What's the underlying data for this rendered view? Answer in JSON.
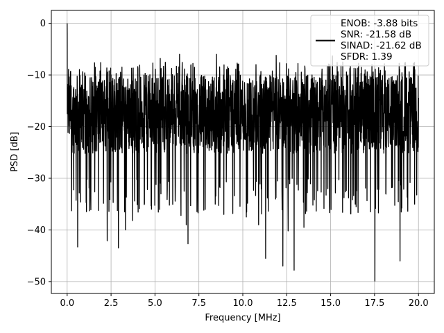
{
  "chart_data": {
    "type": "line",
    "title": "",
    "xlabel": "Frequency [MHz]",
    "ylabel": "PSD [dB]",
    "xlim": [
      -0.9,
      20.9
    ],
    "ylim": [
      -52.3,
      2.5
    ],
    "xticks": [
      0,
      2.5,
      5,
      7.5,
      10,
      12.5,
      15,
      17.5,
      20
    ],
    "xtick_labels": [
      "0.0",
      "2.5",
      "5.0",
      "7.5",
      "10.0",
      "12.5",
      "15.0",
      "17.5",
      "20.0"
    ],
    "yticks": [
      0,
      -10,
      -20,
      -30,
      -40,
      -50
    ],
    "ytick_labels": [
      "0",
      "−10",
      "−20",
      "−30",
      "−40",
      "−50"
    ],
    "grid": true,
    "legend_position": "top-right",
    "line_color": "#000000",
    "series": [
      {
        "legend_lines": [
          "ENOB: -3.88 bits",
          "SNR: -21.58 dB",
          "SINAD: -21.62 dB",
          "SFDR: 1.39"
        ],
        "x_range": [
          0,
          20
        ],
        "start_value": 0,
        "typical_range": [
          -28,
          -10
        ],
        "notable_dips": [
          {
            "x": 0.6,
            "y": -43.3
          },
          {
            "x": 0.25,
            "y": -36.3
          },
          {
            "x": 1.35,
            "y": -36.1
          },
          {
            "x": 2.28,
            "y": -42.1
          },
          {
            "x": 2.92,
            "y": -43.5
          },
          {
            "x": 3.32,
            "y": -40.0
          },
          {
            "x": 3.72,
            "y": -38.2
          },
          {
            "x": 4.8,
            "y": -36.0
          },
          {
            "x": 5.82,
            "y": -35.2
          },
          {
            "x": 6.48,
            "y": -37.2
          },
          {
            "x": 6.78,
            "y": -39.0
          },
          {
            "x": 6.88,
            "y": -42.7
          },
          {
            "x": 8.92,
            "y": -37.0
          },
          {
            "x": 10.2,
            "y": -37.5
          },
          {
            "x": 10.9,
            "y": -39.0
          },
          {
            "x": 11.3,
            "y": -45.5
          },
          {
            "x": 12.28,
            "y": -47.0
          },
          {
            "x": 12.58,
            "y": -40.2
          },
          {
            "x": 12.92,
            "y": -47.8
          },
          {
            "x": 13.48,
            "y": -39.5
          },
          {
            "x": 16.4,
            "y": -35.0
          },
          {
            "x": 17.52,
            "y": -49.9
          },
          {
            "x": 18.95,
            "y": -46.0
          },
          {
            "x": 19.78,
            "y": -35.0
          }
        ],
        "notable_peaks": [
          {
            "x": 0.08,
            "y": -8.9
          },
          {
            "x": 5.3,
            "y": -6.8
          },
          {
            "x": 6.4,
            "y": -6.0
          },
          {
            "x": 8.5,
            "y": -6.0
          },
          {
            "x": 11.9,
            "y": -6.2
          },
          {
            "x": 15.1,
            "y": -6.3
          },
          {
            "x": 17.35,
            "y": -8.0
          }
        ]
      }
    ]
  }
}
